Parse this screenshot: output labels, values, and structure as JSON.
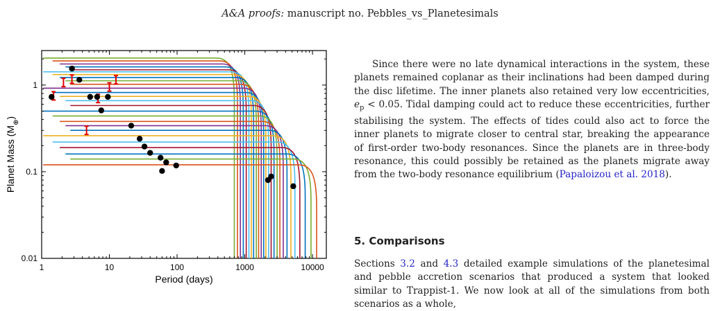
{
  "header": {
    "journal": "A&A proofs:",
    "rest": "manuscript no. Pebbles_vs_Planetesimals"
  },
  "figure": {
    "ylabel": "Planet Mass (M",
    "ylabel_sub": "⊕",
    "ylabel_close": ")",
    "xlabel": "Period (days)"
  },
  "chart_data": {
    "type": "line",
    "xlabel": "Period (days)",
    "ylabel": "Planet Mass (M⊕)",
    "xscale": "log",
    "yscale": "log",
    "xlim": [
      1,
      16000
    ],
    "ylim": [
      0.01,
      2.5
    ],
    "x_ticks": [
      "1",
      "10",
      "100",
      "1000",
      "10000"
    ],
    "y_ticks": [
      "0.01",
      "0.1",
      "1"
    ],
    "series": [
      {
        "color": "#77ac30",
        "mass": 2.05,
        "drop": 700,
        "final": 0.1
      },
      {
        "color": "#d95319",
        "mass": 1.9,
        "drop": 780,
        "final": 0.1
      },
      {
        "color": "#7e2f8e",
        "mass": 1.75,
        "drop": 860,
        "final": 0.1
      },
      {
        "color": "#0072bd",
        "mass": 1.62,
        "drop": 950,
        "final": 0.1
      },
      {
        "color": "#a2142f",
        "mass": 1.5,
        "drop": 1050,
        "final": 0.1
      },
      {
        "color": "#4dbeee",
        "mass": 1.42,
        "drop": 1150,
        "final": 0.1
      },
      {
        "color": "#edb120",
        "mass": 1.32,
        "drop": 1250,
        "final": 0.1
      },
      {
        "color": "#0072bd",
        "mass": 1.22,
        "drop": 1350,
        "final": 0.1
      },
      {
        "color": "#77ac30",
        "mass": 1.12,
        "drop": 1480,
        "final": 0.1
      },
      {
        "color": "#d95319",
        "mass": 1.02,
        "drop": 1600,
        "final": 0.1
      },
      {
        "color": "#7e2f8e",
        "mass": 0.92,
        "drop": 1750,
        "final": 0.1
      },
      {
        "color": "#0072bd",
        "mass": 0.82,
        "drop": 1900,
        "final": 0.1
      },
      {
        "color": "#edb120",
        "mass": 0.74,
        "drop": 2050,
        "final": 0.1
      },
      {
        "color": "#4dbeee",
        "mass": 0.66,
        "drop": 2250,
        "final": 0.1
      },
      {
        "color": "#a2142f",
        "mass": 0.58,
        "drop": 2450,
        "final": 0.1
      },
      {
        "color": "#0072bd",
        "mass": 0.5,
        "drop": 2700,
        "final": 0.1
      },
      {
        "color": "#77ac30",
        "mass": 0.44,
        "drop": 3000,
        "final": 0.1
      },
      {
        "color": "#d95319",
        "mass": 0.38,
        "drop": 3300,
        "final": 0.1
      },
      {
        "color": "#7e2f8e",
        "mass": 0.34,
        "drop": 3700,
        "final": 0.1
      },
      {
        "color": "#0072bd",
        "mass": 0.3,
        "drop": 4200,
        "final": 0.1
      },
      {
        "color": "#edb120",
        "mass": 0.26,
        "drop": 4800,
        "final": 0.1
      },
      {
        "color": "#4dbeee",
        "mass": 0.22,
        "drop": 5500,
        "final": 0.1
      },
      {
        "color": "#a2142f",
        "mass": 0.19,
        "drop": 6500,
        "final": 0.1
      },
      {
        "color": "#0072bd",
        "mass": 0.16,
        "drop": 7800,
        "final": 0.1
      },
      {
        "color": "#77ac30",
        "mass": 0.14,
        "drop": 9500,
        "final": 0.1
      },
      {
        "color": "#d95319",
        "mass": 0.12,
        "drop": 11500,
        "final": 0.1
      }
    ],
    "black_points": [
      [
        1.4,
        0.73
      ],
      [
        2.8,
        1.55
      ],
      [
        3.6,
        1.15
      ],
      [
        5.2,
        0.73
      ],
      [
        6.6,
        0.73
      ],
      [
        7.6,
        0.51
      ],
      [
        9.5,
        0.73
      ],
      [
        21,
        0.34
      ],
      [
        28,
        0.24
      ],
      [
        33,
        0.195
      ],
      [
        40,
        0.165
      ],
      [
        57,
        0.145
      ],
      [
        60,
        0.102
      ],
      [
        69,
        0.128
      ],
      [
        97,
        0.118
      ],
      [
        2200,
        0.08
      ],
      [
        2450,
        0.088
      ],
      [
        5200,
        0.068
      ]
    ],
    "red_points": [
      [
        1.5,
        0.75
      ],
      [
        2.1,
        1.07
      ],
      [
        2.8,
        1.17
      ],
      [
        4.6,
        0.3
      ],
      [
        6.8,
        0.7
      ],
      [
        10,
        0.95
      ],
      [
        12.5,
        1.15
      ]
    ]
  },
  "text": {
    "p1a": "Since there were no late dynamical interactions in the system, these planets remained coplanar as their inclinations had been damped during the disc lifetime. The inner planets also retained very low eccentricities, ",
    "e_sym": "e",
    "e_sub": "p",
    "p1b": " < 0.05. Tidal damping could act to reduce these eccentricities, further stabilising the system. The effects of tides could also act to force the inner planets to migrate closer to central star, breaking the appearance of first-order two-body resonances. Since the planets are in three-body resonance, this could possibly be retained as the planets migrate away from the two-body resonance equilibrium (",
    "cite1": "Papaloizou et al. 2018",
    "p1c": ").",
    "section": "5. Comparisons",
    "p2a": "Sections ",
    "ref1": "3.2",
    "p2b": " and ",
    "ref2": "4.3",
    "p2c": " detailed example simulations of the planetesimal and pebble accretion scenarios that produced a system that looked similar to Trappist-1. We now look at all of the simulations from both scenarios as a whole,"
  }
}
